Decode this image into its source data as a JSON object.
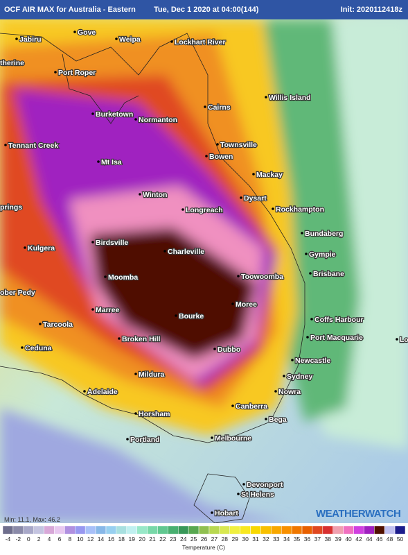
{
  "header": {
    "title": "OCF AIR MAX for Australia - Eastern",
    "valid": "Tue, Dec 1 2020 at 04:00(144)",
    "init": "Init: 2020112418z"
  },
  "map": {
    "places": [
      "Gove",
      "Jabiru",
      "therine",
      "Weipa",
      "Lockhart River",
      "Port Roper",
      "Willis Island",
      "Cairns",
      "Burketown",
      "Normanton",
      "Tennant Creek",
      "Townsville",
      "Mt Isa",
      "Bowen",
      "Mackay",
      "Winton",
      "Dysart",
      "prings",
      "Longreach",
      "Rockhampton",
      "Bundaberg",
      "Birdsville",
      "Kulgera",
      "Charleville",
      "Gympie",
      "Brisbane",
      "Moomba",
      "Toowoomba",
      "ober Pedy",
      "Marree",
      "Moree",
      "Bourke",
      "Coffs Harbour",
      "Tarcoola",
      "Broken Hill",
      "Port Macquarie",
      "Ceduna",
      "Dubbo",
      "Newcastle",
      "Lo",
      "Mildura",
      "Sydney",
      "Adelaide",
      "Nowra",
      "Horsham",
      "Canberra",
      "Bega",
      "Portland",
      "Melbourne",
      "Devonport",
      "St Helens",
      "Hobart"
    ]
  },
  "stats": "Min: 11.1, Max: 46.2",
  "logo": "WEATHERWATCH",
  "legend": {
    "title": "Temperature (C)",
    "items": [
      {
        "value": -4,
        "color": "#6e6e8c"
      },
      {
        "value": -2,
        "color": "#8a8aa8"
      },
      {
        "value": 0,
        "color": "#a8a8c8"
      },
      {
        "value": 2,
        "color": "#c4c4e0"
      },
      {
        "value": 4,
        "color": "#d8a8d8"
      },
      {
        "value": 6,
        "color": "#e8c8f0"
      },
      {
        "value": 8,
        "color": "#b090e0"
      },
      {
        "value": 10,
        "color": "#9898f0"
      },
      {
        "value": 12,
        "color": "#a8c0f8"
      },
      {
        "value": 14,
        "color": "#88b8e8"
      },
      {
        "value": 16,
        "color": "#98d0f0"
      },
      {
        "value": 18,
        "color": "#a8e0e0"
      },
      {
        "value": 19,
        "color": "#c0f0f0"
      },
      {
        "value": 20,
        "color": "#98e8c8"
      },
      {
        "value": 21,
        "color": "#78d8a8"
      },
      {
        "value": 22,
        "color": "#60c890"
      },
      {
        "value": 23,
        "color": "#48b070"
      },
      {
        "value": 24,
        "color": "#389858"
      },
      {
        "value": 25,
        "color": "#58a850"
      },
      {
        "value": 26,
        "color": "#90c050"
      },
      {
        "value": 27,
        "color": "#b8d850"
      },
      {
        "value": 28,
        "color": "#d8e850"
      },
      {
        "value": 29,
        "color": "#f0f040"
      },
      {
        "value": 30,
        "color": "#f8e820"
      },
      {
        "value": 31,
        "color": "#f8d800"
      },
      {
        "value": 32,
        "color": "#f8c000"
      },
      {
        "value": 33,
        "color": "#f8a800"
      },
      {
        "value": 34,
        "color": "#f89000"
      },
      {
        "value": 35,
        "color": "#f07800"
      },
      {
        "value": 36,
        "color": "#e86000"
      },
      {
        "value": 37,
        "color": "#e04820"
      },
      {
        "value": 38,
        "color": "#d83030"
      },
      {
        "value": 39,
        "color": "#f0a0b0"
      },
      {
        "value": 40,
        "color": "#f070c0"
      },
      {
        "value": 42,
        "color": "#d040e0"
      },
      {
        "value": 44,
        "color": "#a020c0"
      },
      {
        "value": 46,
        "color": "#501000"
      },
      {
        "value": 48,
        "color": "#c0c0f0"
      },
      {
        "value": 50,
        "color": "#1c1c8c"
      }
    ]
  }
}
